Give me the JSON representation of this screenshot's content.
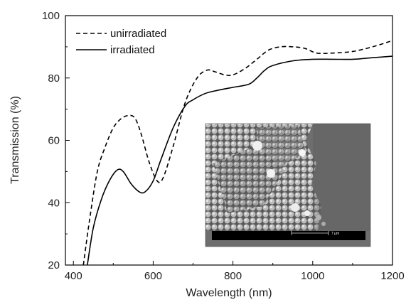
{
  "chart_data": {
    "type": "line",
    "xlabel": "Wavelength (nm)",
    "ylabel": "Transmission (%)",
    "xlim": [
      380,
      1200
    ],
    "ylim": [
      20,
      100
    ],
    "xticks": [
      400,
      600,
      800,
      1000,
      1200
    ],
    "yticks": [
      20,
      40,
      60,
      80,
      100
    ],
    "grid": false,
    "legend_position": "top-left",
    "series": [
      {
        "name": "unirradiated",
        "style": "dashed",
        "color": "#000000",
        "x": [
          425,
          440,
          460,
          480,
          500,
          520,
          540,
          555,
          570,
          590,
          610,
          625,
          650,
          680,
          710,
          735,
          755,
          780,
          800,
          830,
          860,
          890,
          920,
          950,
          980,
          1010,
          1050,
          1100,
          1150,
          1200
        ],
        "y": [
          20,
          34,
          50,
          58,
          64,
          67,
          68,
          67,
          62,
          53,
          47,
          48,
          58,
          72,
          80,
          82.5,
          82,
          81,
          81,
          83,
          86,
          89,
          90,
          90,
          89.5,
          88,
          88,
          88.5,
          90,
          92
        ]
      },
      {
        "name": "irradiated",
        "style": "solid",
        "color": "#000000",
        "x": [
          435,
          450,
          470,
          490,
          510,
          525,
          545,
          565,
          580,
          600,
          620,
          650,
          680,
          700,
          730,
          760,
          800,
          840,
          860,
          880,
          900,
          950,
          1000,
          1050,
          1100,
          1150,
          1200
        ],
        "y": [
          20,
          32,
          41,
          47,
          50.5,
          50,
          46,
          43.5,
          43.5,
          47,
          54,
          64,
          71,
          73,
          75,
          76,
          77,
          78,
          80,
          82.5,
          84,
          85.5,
          86,
          86,
          86,
          86.5,
          87
        ]
      }
    ]
  },
  "inset": {
    "kind": "sem-micrograph",
    "scale_label": "7 µm"
  }
}
